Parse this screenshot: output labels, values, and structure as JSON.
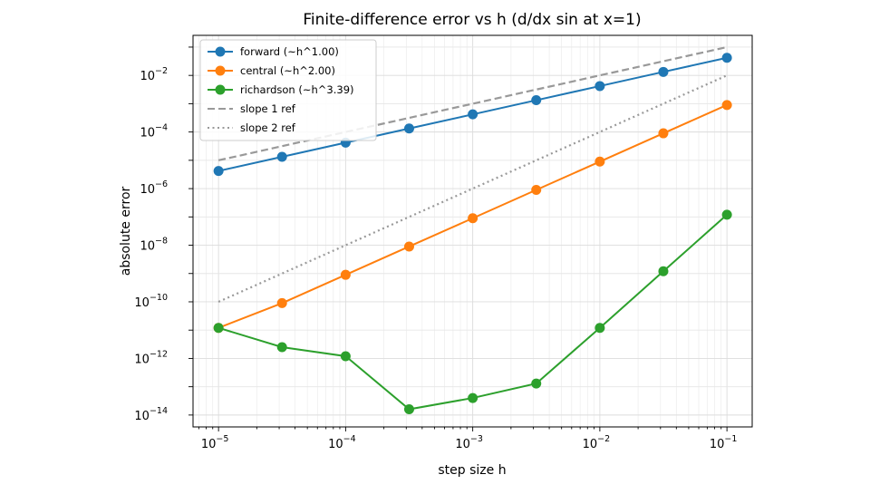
{
  "chart_data": {
    "type": "line",
    "title": "Finite-difference error vs h  (d/dx sin at x=1)",
    "xlabel": "step size h",
    "ylabel": "absolute error",
    "xscale": "log",
    "yscale": "log",
    "xlim": [
      6.3e-06,
      0.158
    ],
    "ylim": [
      3.8e-15,
      0.26
    ],
    "grid": true,
    "legend_position": "top-left",
    "x_ticks": [
      {
        "value": 1e-05,
        "base": "10",
        "exp": "−5"
      },
      {
        "value": 0.0001,
        "base": "10",
        "exp": "−4"
      },
      {
        "value": 0.001,
        "base": "10",
        "exp": "−3"
      },
      {
        "value": 0.01,
        "base": "10",
        "exp": "−2"
      },
      {
        "value": 0.1,
        "base": "10",
        "exp": "−1"
      }
    ],
    "y_ticks": [
      {
        "value": 1e-14,
        "base": "10",
        "exp": "−14"
      },
      {
        "value": 1e-12,
        "base": "10",
        "exp": "−12"
      },
      {
        "value": 1e-10,
        "base": "10",
        "exp": "−10"
      },
      {
        "value": 1e-08,
        "base": "10",
        "exp": "−8"
      },
      {
        "value": 1e-06,
        "base": "10",
        "exp": "−6"
      },
      {
        "value": 0.0001,
        "base": "10",
        "exp": "−4"
      },
      {
        "value": 0.01,
        "base": "10",
        "exp": "−2"
      }
    ],
    "x": [
      1e-05,
      3.16e-05,
      0.0001,
      0.000316,
      0.001,
      0.00316,
      0.01,
      0.0316,
      0.1
    ],
    "series": [
      {
        "name": "forward (~h^1.00)",
        "color": "#1f77b4",
        "style": "solid-marker",
        "values": [
          4.2e-06,
          1.33e-05,
          4.2e-05,
          0.000133,
          0.00042,
          0.00133,
          0.0042,
          0.0133,
          0.042
        ]
      },
      {
        "name": "central (~h^2.00)",
        "color": "#ff7f0e",
        "style": "solid-marker",
        "values": [
          1.2e-11,
          9e-11,
          9e-10,
          9e-09,
          9e-08,
          9e-07,
          9e-06,
          9e-05,
          0.0009
        ]
      },
      {
        "name": "richardson (~h^3.39)",
        "color": "#2ca02c",
        "style": "solid-marker",
        "values": [
          1.2e-11,
          2.5e-12,
          1.2e-12,
          1.6e-14,
          4e-14,
          1.3e-13,
          1.2e-11,
          1.2e-09,
          1.2e-07
        ]
      },
      {
        "name": "slope 1 ref",
        "color": "#999999",
        "style": "dashed",
        "values": [
          1e-05,
          3.16e-05,
          0.0001,
          0.000316,
          0.001,
          0.00316,
          0.01,
          0.0316,
          0.1
        ]
      },
      {
        "name": "slope 2 ref",
        "color": "#999999",
        "style": "dotted",
        "values": [
          1e-10,
          1e-09,
          1e-08,
          1e-07,
          1e-06,
          1e-05,
          0.0001,
          0.001,
          0.01
        ]
      }
    ]
  }
}
